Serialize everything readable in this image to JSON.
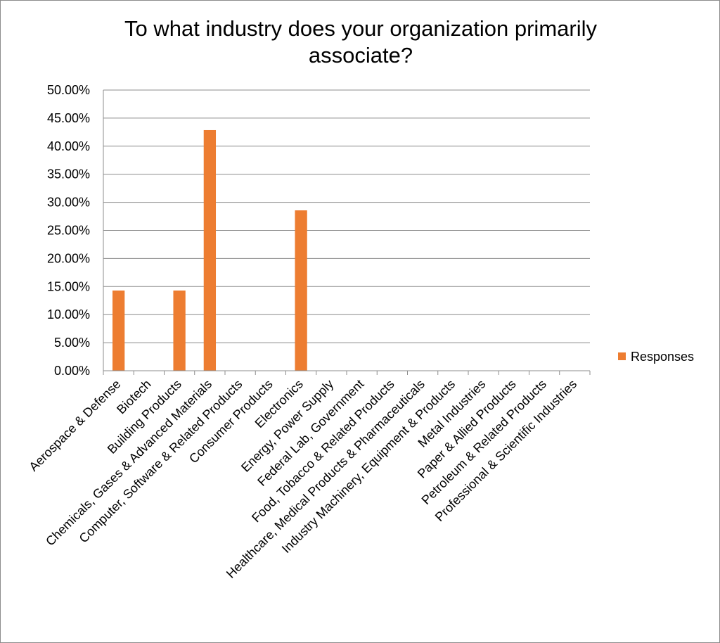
{
  "chart_data": {
    "type": "bar",
    "title_lines": [
      "To what industry does your organization primarily",
      "associate?"
    ],
    "xlabel": "",
    "ylabel": "",
    "ylim": [
      0,
      0.5
    ],
    "ytick_step": 0.05,
    "ytick_labels": [
      "0.00%",
      "5.00%",
      "10.00%",
      "15.00%",
      "20.00%",
      "25.00%",
      "30.00%",
      "35.00%",
      "40.00%",
      "45.00%",
      "50.00%"
    ],
    "grid": true,
    "legend_position": "right",
    "categories": [
      "Aerospace & Defense",
      "Biotech",
      "Building Products",
      "Chemicals, Gases & Advanced Materials",
      "Computer, Software & Related Products",
      "Consumer Products",
      "Electronics",
      "Energy, Power Supply",
      "Federal Lab, Government",
      "Food, Tobacco & Related Products",
      "Healthcare, Medical Products & Pharmaceuticals",
      "Industry Machinery, Equipment & Products",
      "Metal Industries",
      "Paper & Allied Products",
      "Petroleum & Related Products",
      "Professional & Scientific Industries"
    ],
    "series": [
      {
        "name": "Responses",
        "color": "#ED7D31",
        "values": [
          0.1429,
          0,
          0.1429,
          0.4286,
          0,
          0,
          0.2857,
          0,
          0,
          0,
          0,
          0,
          0,
          0,
          0,
          0
        ]
      }
    ]
  }
}
